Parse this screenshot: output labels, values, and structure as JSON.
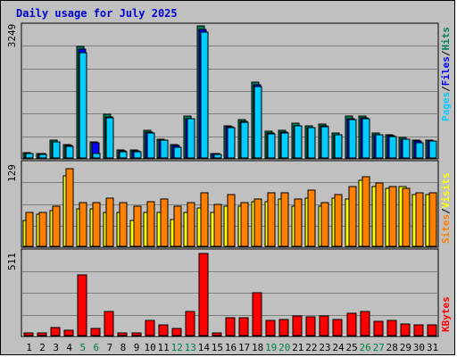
{
  "title": "Daily usage for July 2025",
  "colors": {
    "frame_bg": "#c0c0c0",
    "title": "#0000cc",
    "hits": "#00805c",
    "files": "#0000ff",
    "pages": "#00ccff",
    "visits": "#ffff00",
    "sites": "#ff8000",
    "kbytes": "#ff0000",
    "weekend": "#008040",
    "grid": "#808080"
  },
  "chart_data": [
    {
      "type": "bar",
      "panel": "top",
      "scale_max_label": "3249",
      "ylim": [
        0,
        3249
      ],
      "legend": [
        "Pages",
        "/",
        "Files",
        "/",
        "Hits"
      ],
      "categories": [
        "1",
        "2",
        "3",
        "4",
        "5",
        "6",
        "7",
        "8",
        "9",
        "10",
        "11",
        "12",
        "13",
        "14",
        "15",
        "16",
        "17",
        "18",
        "19",
        "20",
        "21",
        "22",
        "23",
        "24",
        "25",
        "26",
        "27",
        "28",
        "29",
        "30",
        "31"
      ],
      "series": [
        {
          "name": "Hits",
          "values": [
            130,
            110,
            440,
            330,
            2750,
            400,
            1080,
            190,
            190,
            680,
            470,
            320,
            1040,
            3240,
            110,
            800,
            950,
            1870,
            650,
            670,
            850,
            790,
            830,
            620,
            1030,
            1040,
            610,
            580,
            500,
            450,
            450
          ]
        },
        {
          "name": "Files",
          "values": [
            120,
            100,
            400,
            300,
            2670,
            370,
            1000,
            170,
            170,
            640,
            440,
            300,
            970,
            3170,
            100,
            760,
            890,
            1790,
            610,
            630,
            800,
            750,
            790,
            580,
            960,
            980,
            570,
            540,
            470,
            420,
            420
          ]
        },
        {
          "name": "Pages",
          "values": [
            110,
            90,
            390,
            290,
            2600,
            120,
            980,
            160,
            160,
            620,
            430,
            260,
            960,
            3100,
            90,
            740,
            870,
            1750,
            590,
            610,
            780,
            740,
            770,
            570,
            940,
            960,
            560,
            530,
            460,
            380,
            410
          ]
        }
      ]
    },
    {
      "type": "bar",
      "panel": "middle",
      "scale_max_label": "129",
      "ylim": [
        0,
        129
      ],
      "legend": [
        "Sites",
        "/",
        "Visits"
      ],
      "categories": [
        "1",
        "2",
        "3",
        "4",
        "5",
        "6",
        "7",
        "8",
        "9",
        "10",
        "11",
        "12",
        "13",
        "14",
        "15",
        "16",
        "17",
        "18",
        "19",
        "20",
        "21",
        "22",
        "23",
        "24",
        "25",
        "26",
        "27",
        "28",
        "29",
        "30",
        "31"
      ],
      "series": [
        {
          "name": "Visits",
          "values": [
            40,
            50,
            55,
            110,
            58,
            58,
            53,
            53,
            40,
            53,
            53,
            42,
            53,
            60,
            53,
            63,
            63,
            70,
            70,
            73,
            63,
            75,
            63,
            75,
            73,
            103,
            93,
            90,
            93,
            80,
            80
          ]
        },
        {
          "name": "Sites",
          "values": [
            53,
            53,
            63,
            121,
            68,
            68,
            75,
            68,
            63,
            70,
            73,
            63,
            68,
            83,
            65,
            80,
            68,
            73,
            83,
            83,
            73,
            88,
            68,
            80,
            93,
            108,
            98,
            93,
            90,
            83,
            83
          ]
        }
      ]
    },
    {
      "type": "bar",
      "panel": "bottom",
      "scale_max_label": "511",
      "ylim": [
        0,
        511
      ],
      "legend": [
        "KBytes"
      ],
      "categories": [
        "1",
        "2",
        "3",
        "4",
        "5",
        "6",
        "7",
        "8",
        "9",
        "10",
        "11",
        "12",
        "13",
        "14",
        "15",
        "16",
        "17",
        "18",
        "19",
        "20",
        "21",
        "22",
        "23",
        "24",
        "25",
        "26",
        "27",
        "28",
        "29",
        "30",
        "31"
      ],
      "series": [
        {
          "name": "KBytes",
          "values": [
            18,
            18,
            50,
            30,
            370,
            45,
            145,
            18,
            18,
            92,
            65,
            45,
            145,
            500,
            18,
            110,
            110,
            260,
            95,
            100,
            120,
            115,
            120,
            100,
            135,
            145,
            85,
            95,
            70,
            65,
            65
          ]
        }
      ]
    }
  ],
  "weekend_days": [
    "5",
    "6",
    "12",
    "13",
    "19",
    "20",
    "26",
    "27"
  ]
}
